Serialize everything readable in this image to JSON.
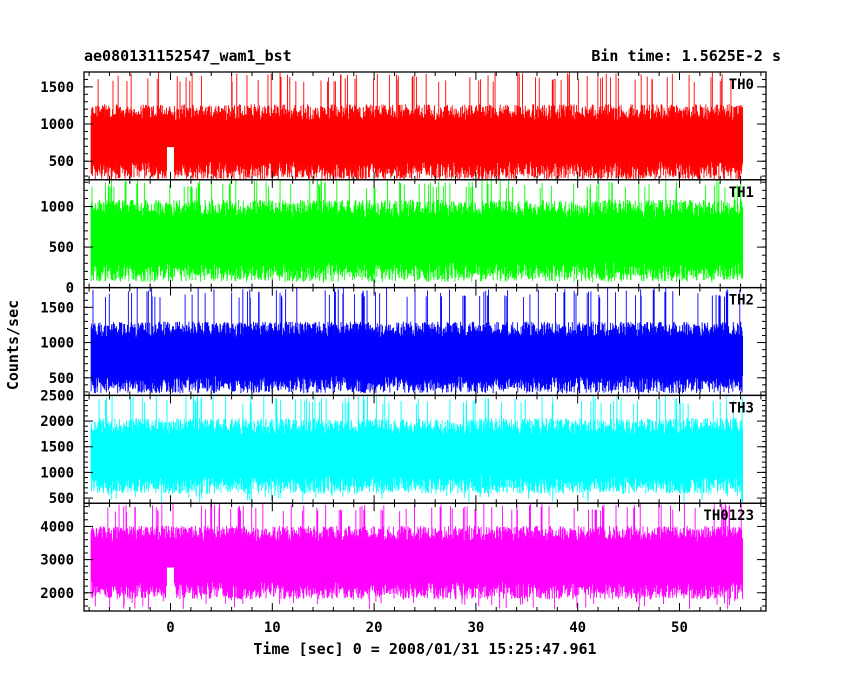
{
  "header": {
    "title": "ae080131152547_wam1_bst",
    "bin_time": "Bin time: 1.5625E-2 s"
  },
  "chart_data": {
    "type": "line",
    "title": "ae080131152547_wam1_bst",
    "subtitle": "Bin time: 1.5625E-2 s",
    "xlabel": "Time [sec] 0 = 2008/01/31 15:25:47.961",
    "ylabel": "Counts/sec",
    "xlim": [
      -8.5,
      58.5
    ],
    "x_ticks": [
      0,
      10,
      20,
      30,
      40,
      50
    ],
    "x_range_data": [
      -7.8,
      56.2
    ],
    "grid": false,
    "panels": [
      {
        "name": "TH0",
        "color": "#ff0000",
        "ylim": [
          250,
          1700
        ],
        "y_ticks": [
          500,
          1000,
          1500
        ],
        "y_tick_labels": [
          "500",
          "1000",
          "1500"
        ],
        "base": 800,
        "spread": 550,
        "min": 260,
        "peak": 1700,
        "spike": {
          "x": 0,
          "value": 1150
        }
      },
      {
        "name": "TH1",
        "color": "#00ff00",
        "ylim": [
          0,
          1330
        ],
        "y_ticks": [
          0,
          500,
          1000
        ],
        "y_tick_labels": [
          "0",
          "500",
          "1000"
        ],
        "base": 620,
        "spread": 550,
        "min": 60,
        "peak": 1330
      },
      {
        "name": "TH2",
        "color": "#0000ff",
        "ylim": [
          250,
          1780
        ],
        "y_ticks": [
          500,
          1000,
          1500
        ],
        "y_tick_labels": [
          "500",
          "1000",
          "1500"
        ],
        "base": 830,
        "spread": 550,
        "min": 280,
        "peak": 1780
      },
      {
        "name": "TH3",
        "color": "#00ffff",
        "ylim": [
          400,
          2500
        ],
        "y_ticks": [
          500,
          1000,
          1500,
          2000,
          2500
        ],
        "y_tick_labels": [
          "500",
          "1000",
          "1500",
          "2000",
          "2500"
        ],
        "base": 1380,
        "spread": 800,
        "min": 420,
        "peak": 2500
      },
      {
        "name": "TH0123",
        "color": "#ff00ff",
        "ylim": [
          1450,
          4700
        ],
        "y_ticks": [
          2000,
          3000,
          4000
        ],
        "y_tick_labels": [
          "2000",
          "3000",
          "4000"
        ],
        "base": 3000,
        "spread": 1200,
        "min": 1500,
        "peak": 4700,
        "spike": {
          "x": 0,
          "value": 3600
        }
      }
    ]
  }
}
